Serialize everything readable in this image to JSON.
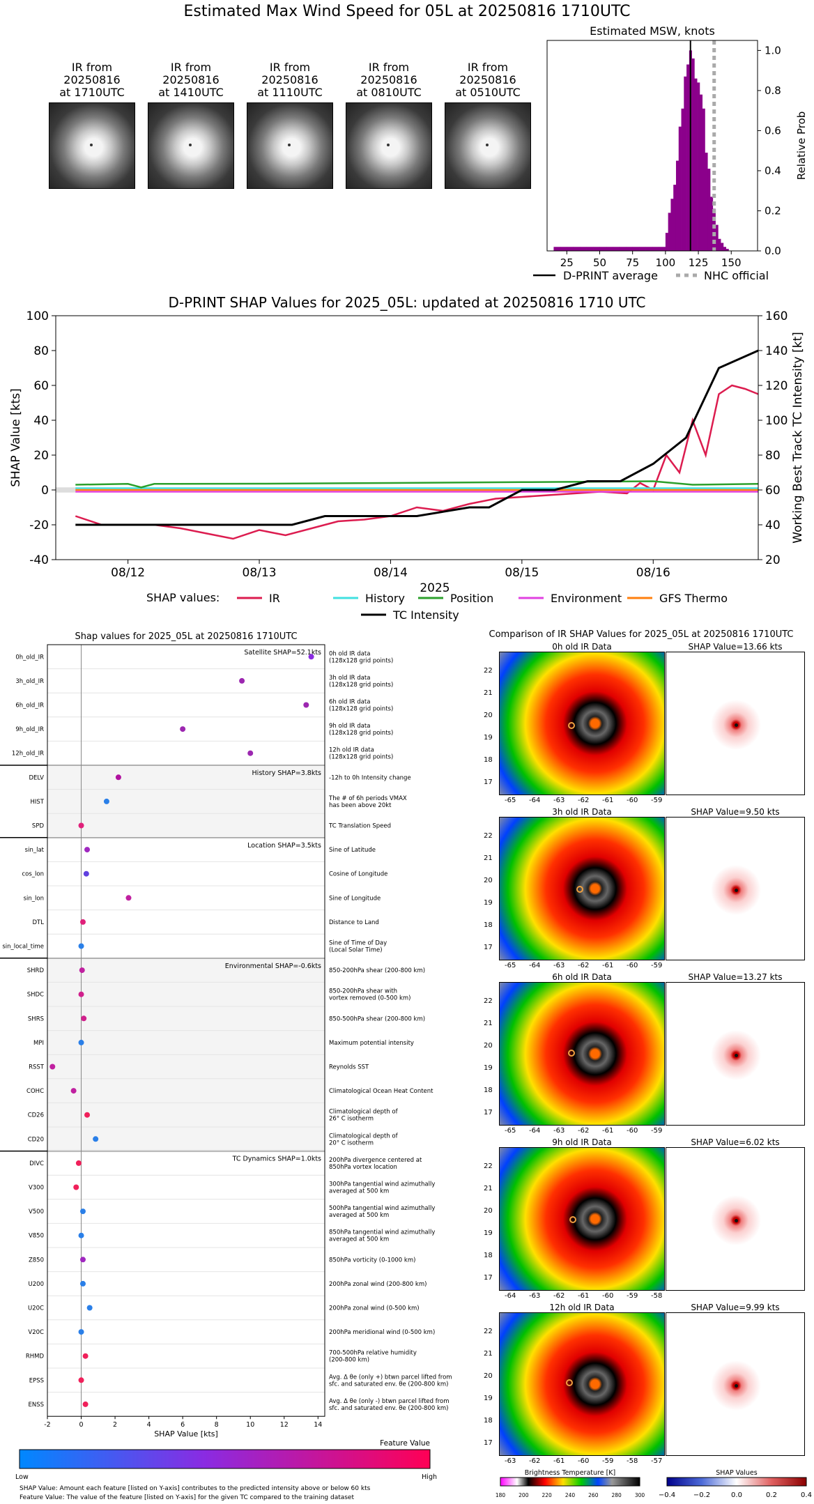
{
  "header": {
    "title": "Estimated Max Wind Speed for 05L at 20250816 1710UTC"
  },
  "thumbnails": [
    {
      "caption": "IR from\n20250816\nat 1710UTC"
    },
    {
      "caption": "IR from\n20250816\nat 1410UTC"
    },
    {
      "caption": "IR from\n20250816\nat 1110UTC"
    },
    {
      "caption": "IR from\n20250816\nat 0810UTC"
    },
    {
      "caption": "IR from\n20250816\nat 0510UTC"
    }
  ],
  "msw_hist": {
    "title": "Estimated MSW, knots",
    "ylabel": "Relative Prob",
    "xticks": [
      "25",
      "50",
      "75",
      "100",
      "125",
      "150"
    ],
    "yticks": [
      "0.0",
      "0.2",
      "0.4",
      "0.6",
      "0.8",
      "1.0"
    ],
    "legend": {
      "dprint": "D-PRINT average",
      "nhc": "NHC official"
    },
    "colors": {
      "bars": "#8b008b",
      "mean": "#000000",
      "nhc": "#aaaaaa"
    }
  },
  "chart_data": [
    {
      "type": "bar",
      "title": "Estimated MSW, knots",
      "ylabel": "Relative Prob",
      "xlim": [
        10,
        170
      ],
      "ylim": [
        0,
        1.05
      ],
      "bins_x": [
        15,
        20,
        25,
        30,
        35,
        40,
        45,
        50,
        55,
        60,
        65,
        70,
        75,
        80,
        85,
        90,
        95,
        100,
        102,
        104,
        106,
        108,
        110,
        112,
        114,
        116,
        118,
        120,
        122,
        124,
        126,
        128,
        130,
        132,
        134,
        136,
        138,
        140,
        142,
        144,
        146
      ],
      "bins_y": [
        0.02,
        0.02,
        0.02,
        0.02,
        0.02,
        0.02,
        0.02,
        0.02,
        0.02,
        0.02,
        0.02,
        0.02,
        0.02,
        0.02,
        0.02,
        0.02,
        0.02,
        0.09,
        0.19,
        0.26,
        0.33,
        0.45,
        0.62,
        0.71,
        0.87,
        0.93,
        1.0,
        0.96,
        0.86,
        0.84,
        0.78,
        0.71,
        0.49,
        0.41,
        0.27,
        0.21,
        0.13,
        0.06,
        0.04,
        0.02,
        0.01
      ],
      "dprint_average": 119,
      "nhc_official": 137
    },
    {
      "type": "line",
      "title": "D-PRINT SHAP Values for 2025_05L: updated at 20250816 1710 UTC",
      "xlabel": "2025",
      "ylabel": "SHAP Value [kts]",
      "ylabel_right": "Working Best Track TC Intensity [kt]",
      "xticks": [
        "08/12",
        "08/13",
        "08/14",
        "08/15",
        "08/16"
      ],
      "yticks_left": [
        "-40",
        "-20",
        "0",
        "20",
        "40",
        "60",
        "80",
        "100"
      ],
      "yticks_right": [
        "20",
        "40",
        "60",
        "80",
        "100",
        "120",
        "140",
        "160"
      ],
      "ylim_left": [
        -40,
        100
      ],
      "ylim_right": [
        20,
        160
      ],
      "legend_title": "SHAP values:",
      "series": [
        {
          "name": "IR",
          "color": "#dc1c4f",
          "x_days": [
            11.6,
            11.8,
            12.0,
            12.2,
            12.4,
            12.6,
            12.8,
            13.0,
            13.2,
            13.4,
            13.6,
            13.8,
            14.0,
            14.2,
            14.4,
            14.6,
            14.8,
            15.0,
            15.2,
            15.4,
            15.6,
            15.8,
            15.9,
            16.0,
            16.1,
            16.2,
            16.3,
            16.4,
            16.5,
            16.6,
            16.7,
            16.8
          ],
          "values": [
            -15,
            -20,
            -20,
            -20,
            -22,
            -25,
            -28,
            -23,
            -26,
            -22,
            -18,
            -17,
            -15,
            -10,
            -12,
            -8,
            -5,
            -4,
            -3,
            -2,
            -1,
            -2,
            4,
            0,
            20,
            10,
            40,
            20,
            55,
            60,
            58,
            55
          ]
        },
        {
          "name": "History",
          "color": "#40e0e0",
          "x_days": [
            11.6,
            16.8
          ],
          "values": [
            1,
            1
          ]
        },
        {
          "name": "Position",
          "color": "#2ca02c",
          "x_days": [
            11.6,
            12.0,
            12.1,
            12.2,
            13.0,
            14.0,
            15.0,
            16.0,
            16.3,
            16.8
          ],
          "values": [
            3,
            3.5,
            1.5,
            3.5,
            3.6,
            4,
            4.5,
            5,
            3,
            3.5
          ]
        },
        {
          "name": "Environment",
          "color": "#e040e0",
          "x_days": [
            11.6,
            16.8
          ],
          "values": [
            -1,
            -1
          ]
        },
        {
          "name": "GFS Thermo",
          "color": "#ff7f0e",
          "x_days": [
            11.6,
            16.8
          ],
          "values": [
            0,
            0
          ]
        },
        {
          "name": "TC Intensity",
          "color": "#000000",
          "x_days": [
            11.6,
            13.25,
            13.5,
            14.2,
            14.6,
            14.75,
            15.0,
            15.25,
            15.5,
            15.75,
            16.0,
            16.25,
            16.5,
            16.8
          ],
          "values": [
            40,
            40,
            45,
            45,
            50,
            50,
            60,
            60,
            65,
            65,
            75,
            90,
            130,
            140
          ]
        }
      ]
    },
    {
      "type": "scatter",
      "title": "Shap values for 2025_05L at 20250816 1710UTC",
      "xlabel": "SHAP Value [kts]",
      "xlim": [
        -2,
        14.4
      ],
      "xticks": [
        "-2",
        "0",
        "2",
        "4",
        "6",
        "8",
        "10",
        "12",
        "14"
      ],
      "points": [
        {
          "feature": "0h_old_IR",
          "value": 13.6,
          "color": "#8a2be2"
        },
        {
          "feature": "3h_old_IR",
          "value": 9.5,
          "color": "#9c27b0"
        },
        {
          "feature": "6h_old_IR",
          "value": 13.3,
          "color": "#9c27b0"
        },
        {
          "feature": "9h_old_IR",
          "value": 6.0,
          "color": "#9c27b0"
        },
        {
          "feature": "12h_old_IR",
          "value": 10.0,
          "color": "#9c27b0"
        },
        {
          "feature": "DELV",
          "value": 2.2,
          "color": "#b0129f"
        },
        {
          "feature": "HIST",
          "value": 1.5,
          "color": "#2a7fe8"
        },
        {
          "feature": "SPD",
          "value": 0.0,
          "color": "#e0207a"
        },
        {
          "feature": "sin_lat",
          "value": 0.35,
          "color": "#a028c0"
        },
        {
          "feature": "cos_lon",
          "value": 0.3,
          "color": "#6040e0"
        },
        {
          "feature": "sin_lon",
          "value": 2.8,
          "color": "#c020a0"
        },
        {
          "feature": "DTL",
          "value": 0.1,
          "color": "#e0207a"
        },
        {
          "feature": "sin_local_time",
          "value": 0.0,
          "color": "#2a7fe8"
        },
        {
          "feature": "SHRD",
          "value": 0.05,
          "color": "#c020a0"
        },
        {
          "feature": "SHDC",
          "value": 0.0,
          "color": "#d0208c"
        },
        {
          "feature": "SHRS",
          "value": 0.15,
          "color": "#d0208c"
        },
        {
          "feature": "MPI",
          "value": 0.0,
          "color": "#2a7fe8"
        },
        {
          "feature": "RSST",
          "value": -1.7,
          "color": "#c020a0"
        },
        {
          "feature": "COHC",
          "value": -0.45,
          "color": "#c020a0"
        },
        {
          "feature": "CD26",
          "value": 0.35,
          "color": "#f0205a"
        },
        {
          "feature": "CD20",
          "value": 0.85,
          "color": "#2a7fe8"
        },
        {
          "feature": "DIVC",
          "value": -0.15,
          "color": "#f0205a"
        },
        {
          "feature": "V300",
          "value": -0.3,
          "color": "#f0205a"
        },
        {
          "feature": "V500",
          "value": 0.1,
          "color": "#2a7fe8"
        },
        {
          "feature": "V850",
          "value": 0.0,
          "color": "#2a7fe8"
        },
        {
          "feature": "Z850",
          "value": 0.1,
          "color": "#a028c0"
        },
        {
          "feature": "U200",
          "value": 0.1,
          "color": "#2a7fe8"
        },
        {
          "feature": "U20C",
          "value": 0.5,
          "color": "#2a7fe8"
        },
        {
          "feature": "V20C",
          "value": 0.0,
          "color": "#2a7fe8"
        },
        {
          "feature": "RHMD",
          "value": 0.25,
          "color": "#f0205a"
        },
        {
          "feature": "EPSS",
          "value": 0.0,
          "color": "#f0205a"
        },
        {
          "feature": "ENSS",
          "value": 0.25,
          "color": "#f0205a"
        }
      ]
    }
  ],
  "shap_ts": {
    "title": "D-PRINT SHAP Values for 2025_05L: updated at 20250816 1710 UTC",
    "xlabel": "2025",
    "ylabel": "SHAP Value [kts]",
    "ylabel_right": "Working Best Track TC Intensity [kt]",
    "legend_title": "SHAP values:",
    "legend": [
      "IR",
      "History",
      "Position",
      "Environment",
      "GFS Thermo",
      "TC Intensity"
    ]
  },
  "features": {
    "title": "Shap values for 2025_05L at 20250816 1710UTC",
    "xlabel": "SHAP Value [kts]",
    "groups": [
      {
        "label": "Satellite SHAP=52.1kts"
      },
      {
        "label": "History SHAP=3.8kts"
      },
      {
        "label": "Location SHAP=3.5kts"
      },
      {
        "label": "Environmental SHAP=-0.6kts"
      },
      {
        "label": "TC Dynamics SHAP=1.0kts"
      }
    ],
    "rows": [
      {
        "name": "0h_old_IR",
        "desc": "0h old IR data\n(128x128 grid points)"
      },
      {
        "name": "3h_old_IR",
        "desc": "3h old IR data\n(128x128 grid points)"
      },
      {
        "name": "6h_old_IR",
        "desc": "6h old IR data\n(128x128 grid points)"
      },
      {
        "name": "9h_old_IR",
        "desc": "9h old IR data\n(128x128 grid points)"
      },
      {
        "name": "12h_old_IR",
        "desc": "12h old IR data\n(128x128 grid points)"
      },
      {
        "name": "DELV",
        "desc": "-12h to 0h Intensity change"
      },
      {
        "name": "HIST",
        "desc": "The # of 6h periods VMAX\nhas been above 20kt"
      },
      {
        "name": "SPD",
        "desc": "TC Translation Speed"
      },
      {
        "name": "sin_lat",
        "desc": "Sine of Latitude"
      },
      {
        "name": "cos_lon",
        "desc": "Cosine of Longitude"
      },
      {
        "name": "sin_lon",
        "desc": "Sine of Longitude"
      },
      {
        "name": "DTL",
        "desc": "Distance to Land"
      },
      {
        "name": "sin_local_time",
        "desc": "Sine of Time of Day\n(Local Solar Time)"
      },
      {
        "name": "SHRD",
        "desc": "850-200hPa shear (200-800 km)"
      },
      {
        "name": "SHDC",
        "desc": "850-200hPa shear with\nvortex removed (0-500 km)"
      },
      {
        "name": "SHRS",
        "desc": "850-500hPa shear (200-800 km)"
      },
      {
        "name": "MPI",
        "desc": "Maximum potential intensity"
      },
      {
        "name": "RSST",
        "desc": "Reynolds SST"
      },
      {
        "name": "COHC",
        "desc": "Climatological Ocean Heat Content"
      },
      {
        "name": "CD26",
        "desc": "Climatological depth of\n26° C isotherm"
      },
      {
        "name": "CD20",
        "desc": "Climatological depth of\n20° C isotherm"
      },
      {
        "name": "DIVC",
        "desc": "200hPa divergence centered at\n850hPa vortex location"
      },
      {
        "name": "V300",
        "desc": "300hPa tangential wind azimuthally\naveraged at 500 km"
      },
      {
        "name": "V500",
        "desc": "500hPa tangential wind azimuthally\naveraged at 500 km"
      },
      {
        "name": "V850",
        "desc": "850hPa tangential wind azimuthally\naveraged at 500 km"
      },
      {
        "name": "Z850",
        "desc": "850hPa vorticity (0-1000 km)"
      },
      {
        "name": "U200",
        "desc": "200hPa zonal wind (200-800 km)"
      },
      {
        "name": "U20C",
        "desc": "200hPa zonal wind (0-500 km)"
      },
      {
        "name": "V20C",
        "desc": "200hPa meridional wind (0-500 km)"
      },
      {
        "name": "RHMD",
        "desc": "700-500hPa relative humidity\n(200-800 km)"
      },
      {
        "name": "EPSS",
        "desc": "Avg. Δ θe (only +) btwn parcel lifted from\nsfc. and saturated env. θe (200-800 km)"
      },
      {
        "name": "ENSS",
        "desc": "Avg. Δ θe (only -) btwn parcel lifted from\nsfc. and saturated env. θe (200-800 km)"
      }
    ],
    "colorbar": {
      "title": "Feature Value",
      "low": "Low",
      "high": "High"
    },
    "footnotes": [
      "SHAP Value: Amount each feature [listed on Y-axis] contributes to the predicted intensity above or below 60 kts",
      "Feature Value: The value of the feature [listed on Y-axis] for the given TC compared to the training dataset"
    ]
  },
  "comparison": {
    "title": "Comparison of IR SHAP Values for 2025_05L at 20250816 1710UTC",
    "panels": [
      {
        "ir_title": "0h old IR Data",
        "shap_title": "SHAP Value=13.66 kts",
        "xticks": [
          "-65",
          "-64",
          "-63",
          "-62",
          "-61",
          "-60",
          "-59"
        ]
      },
      {
        "ir_title": "3h old IR Data",
        "shap_title": "SHAP Value=9.50 kts",
        "xticks": [
          "-65",
          "-64",
          "-63",
          "-62",
          "-61",
          "-60",
          "-59"
        ]
      },
      {
        "ir_title": "6h old IR Data",
        "shap_title": "SHAP Value=13.27 kts",
        "xticks": [
          "-65",
          "-64",
          "-63",
          "-62",
          "-61",
          "-60",
          "-59"
        ]
      },
      {
        "ir_title": "9h old IR Data",
        "shap_title": "SHAP Value=6.02 kts",
        "xticks": [
          "-64",
          "-63",
          "-62",
          "-61",
          "-60",
          "-59",
          "-58"
        ]
      },
      {
        "ir_title": "12h old IR Data",
        "shap_title": "SHAP Value=9.99 kts",
        "xticks": [
          "-63",
          "-62",
          "-61",
          "-60",
          "-59",
          "-58",
          "-57"
        ]
      }
    ],
    "yticks": [
      "22",
      "21",
      "20",
      "19",
      "18",
      "17"
    ],
    "bt_colorbar": {
      "title": "Brightness Temperature [K]",
      "ticks": [
        "180",
        "200",
        "220",
        "240",
        "260",
        "280",
        "300"
      ]
    },
    "shap_colorbar": {
      "title": "SHAP Values",
      "ticks": [
        "−0.4",
        "−0.2",
        "0.0",
        "0.2",
        "0.4"
      ]
    }
  }
}
